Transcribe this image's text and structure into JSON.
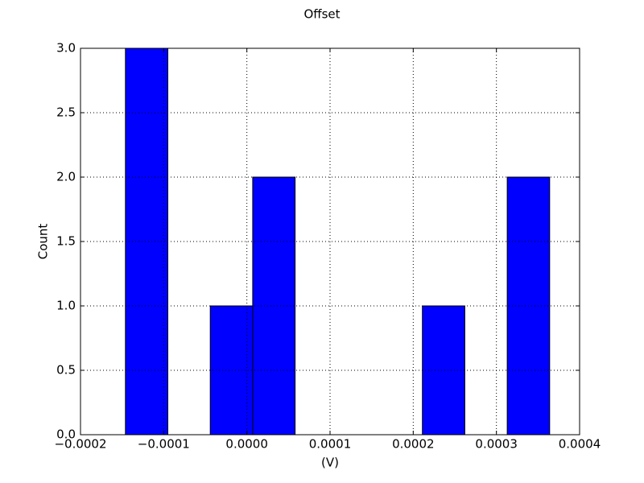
{
  "chart_data": {
    "type": "histogram",
    "title": "Offset",
    "xlabel": "(V)",
    "ylabel": "Count",
    "bins": [
      -0.000146,
      -9.5e-05,
      -4.4e-05,
      7e-06,
      5.8e-05,
      0.000109,
      0.00016,
      0.000211,
      0.000262,
      0.000313,
      0.000364
    ],
    "values": [
      3,
      0,
      1,
      2,
      0,
      0,
      0,
      1,
      0,
      2
    ],
    "color": "#0000ff",
    "xlim": [
      -0.0002,
      0.0004
    ],
    "xticks": [
      {
        "value": -0.0002,
        "label": "−0.0002"
      },
      {
        "value": -0.0001,
        "label": "−0.0001"
      },
      {
        "value": 0,
        "label": "0.0000"
      },
      {
        "value": 0.0001,
        "label": "0.0001"
      },
      {
        "value": 0.0002,
        "label": "0.0002"
      },
      {
        "value": 0.0003,
        "label": "0.0003"
      },
      {
        "value": 0.0004,
        "label": "0.0004"
      }
    ],
    "ylim": [
      0,
      3
    ],
    "yticks": [
      {
        "value": 0,
        "label": "0.0"
      },
      {
        "value": 0.5,
        "label": "0.5"
      },
      {
        "value": 1,
        "label": "1.0"
      },
      {
        "value": 1.5,
        "label": "1.5"
      },
      {
        "value": 2,
        "label": "2.0"
      },
      {
        "value": 2.5,
        "label": "2.5"
      },
      {
        "value": 3,
        "label": "3.0"
      }
    ],
    "grid": true
  }
}
